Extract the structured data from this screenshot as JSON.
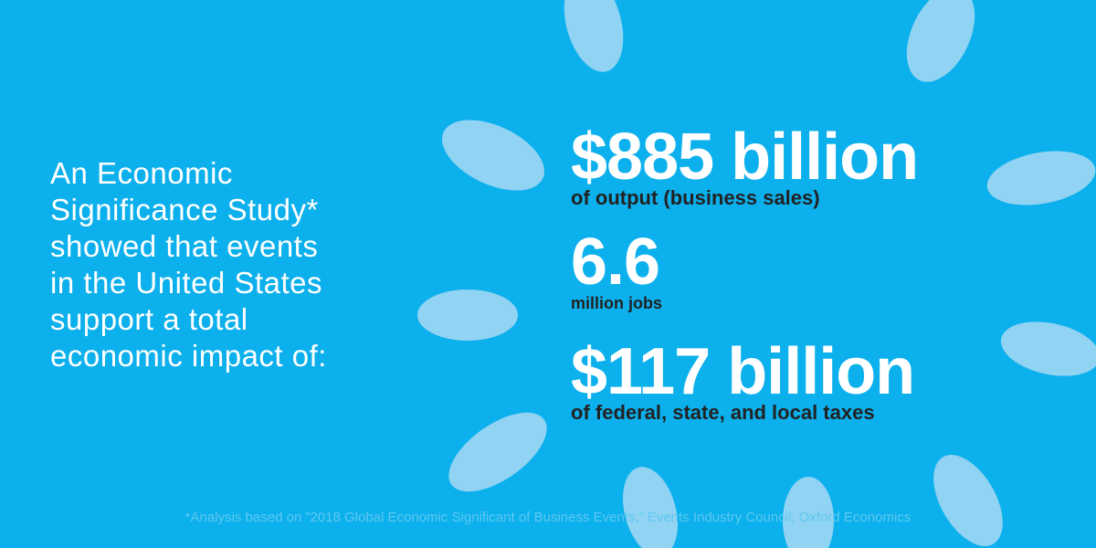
{
  "intro": {
    "lines": [
      "An Economic",
      "Significance Study*",
      "showed that events",
      "in the United States",
      "support a total",
      "economic impact of:"
    ]
  },
  "stats": [
    {
      "value": "$885 billion",
      "description": "of output (business sales)"
    },
    {
      "value": "6.6",
      "description": "million jobs"
    },
    {
      "value": "$117 billion",
      "description": "of federal, state, and local taxes"
    }
  ],
  "footnote": "*Analysis based on ”2018 Global Economic Significant of Business Events,” Events Industry Council, Oxford Economics"
}
